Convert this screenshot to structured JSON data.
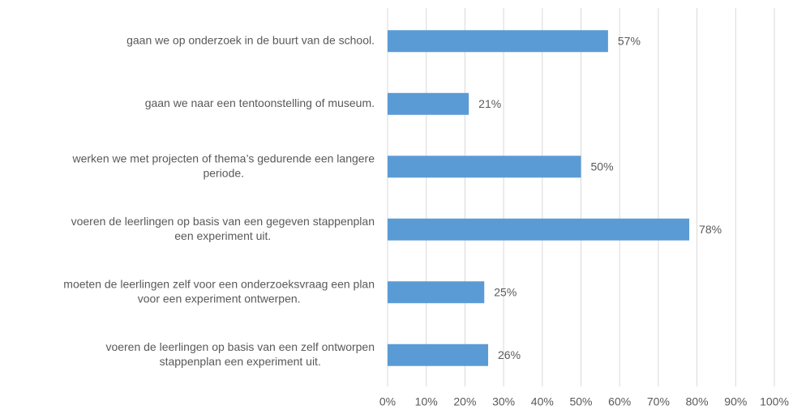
{
  "chart_data": {
    "type": "bar",
    "orientation": "horizontal",
    "categories": [
      [
        "gaan we op onderzoek in de buurt van de school."
      ],
      [
        "gaan we naar een tentoonstelling of museum."
      ],
      [
        "werken we met projecten of thema’s gedurende een langere",
        "periode."
      ],
      [
        "voeren de leerlingen op basis van een gegeven stappenplan",
        "een experiment uit."
      ],
      [
        "moeten de leerlingen zelf voor een onderzoeksvraag een plan",
        "voor een experiment ontwerpen."
      ],
      [
        "voeren de leerlingen op basis van een zelf ontworpen",
        "stappenplan een experiment uit."
      ]
    ],
    "values": [
      57,
      21,
      50,
      78,
      25,
      26
    ],
    "value_labels": [
      "57%",
      "21%",
      "50%",
      "78%",
      "25%",
      "26%"
    ],
    "color": "#5b9bd5",
    "xlim": [
      0,
      100
    ],
    "xticks": [
      {
        "value": 0,
        "label": "0%"
      },
      {
        "value": 10,
        "label": "10%"
      },
      {
        "value": 20,
        "label": "20%"
      },
      {
        "value": 30,
        "label": "30%"
      },
      {
        "value": 40,
        "label": "40%"
      },
      {
        "value": 50,
        "label": "50%"
      },
      {
        "value": 60,
        "label": "60%"
      },
      {
        "value": 70,
        "label": "70%"
      },
      {
        "value": 80,
        "label": "80%"
      },
      {
        "value": 90,
        "label": "90%"
      },
      {
        "value": 100,
        "label": "100%"
      }
    ],
    "grid": true
  }
}
